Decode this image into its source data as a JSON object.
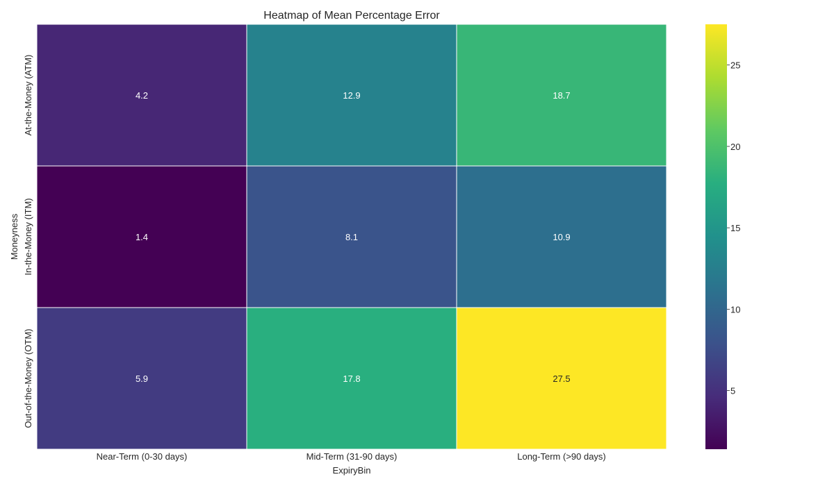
{
  "chart_data": {
    "type": "heatmap",
    "title": "Heatmap of Mean Percentage Error",
    "xlabel": "ExpiryBin",
    "ylabel": "Moneyness",
    "x_categories": [
      "Near-Term (0-30 days)",
      "Mid-Term (31-90 days)",
      "Long-Term (>90 days)"
    ],
    "y_categories": [
      "At-the-Money (ATM)",
      "In-the-Money (ITM)",
      "Out-of-the-Money (OTM)"
    ],
    "values": [
      [
        4.2,
        12.9,
        18.7
      ],
      [
        1.4,
        8.1,
        10.9
      ],
      [
        5.9,
        17.8,
        27.5
      ]
    ],
    "cell_labels": [
      [
        "4.2",
        "12.9",
        "18.7"
      ],
      [
        "1.4",
        "8.1",
        "10.9"
      ],
      [
        "5.9",
        "17.8",
        "27.5"
      ]
    ],
    "colormap": "viridis",
    "vmin": 1.4,
    "vmax": 27.5,
    "colorbar_ticks": [
      5,
      10,
      15,
      20,
      25
    ],
    "colorbar_tick_labels": [
      "5",
      "10",
      "15",
      "20",
      "25"
    ],
    "grid": false,
    "cell_label_color": "#ffffff",
    "cell_label_dark_color": "#262626",
    "cell_border_color": "#ffffff"
  }
}
